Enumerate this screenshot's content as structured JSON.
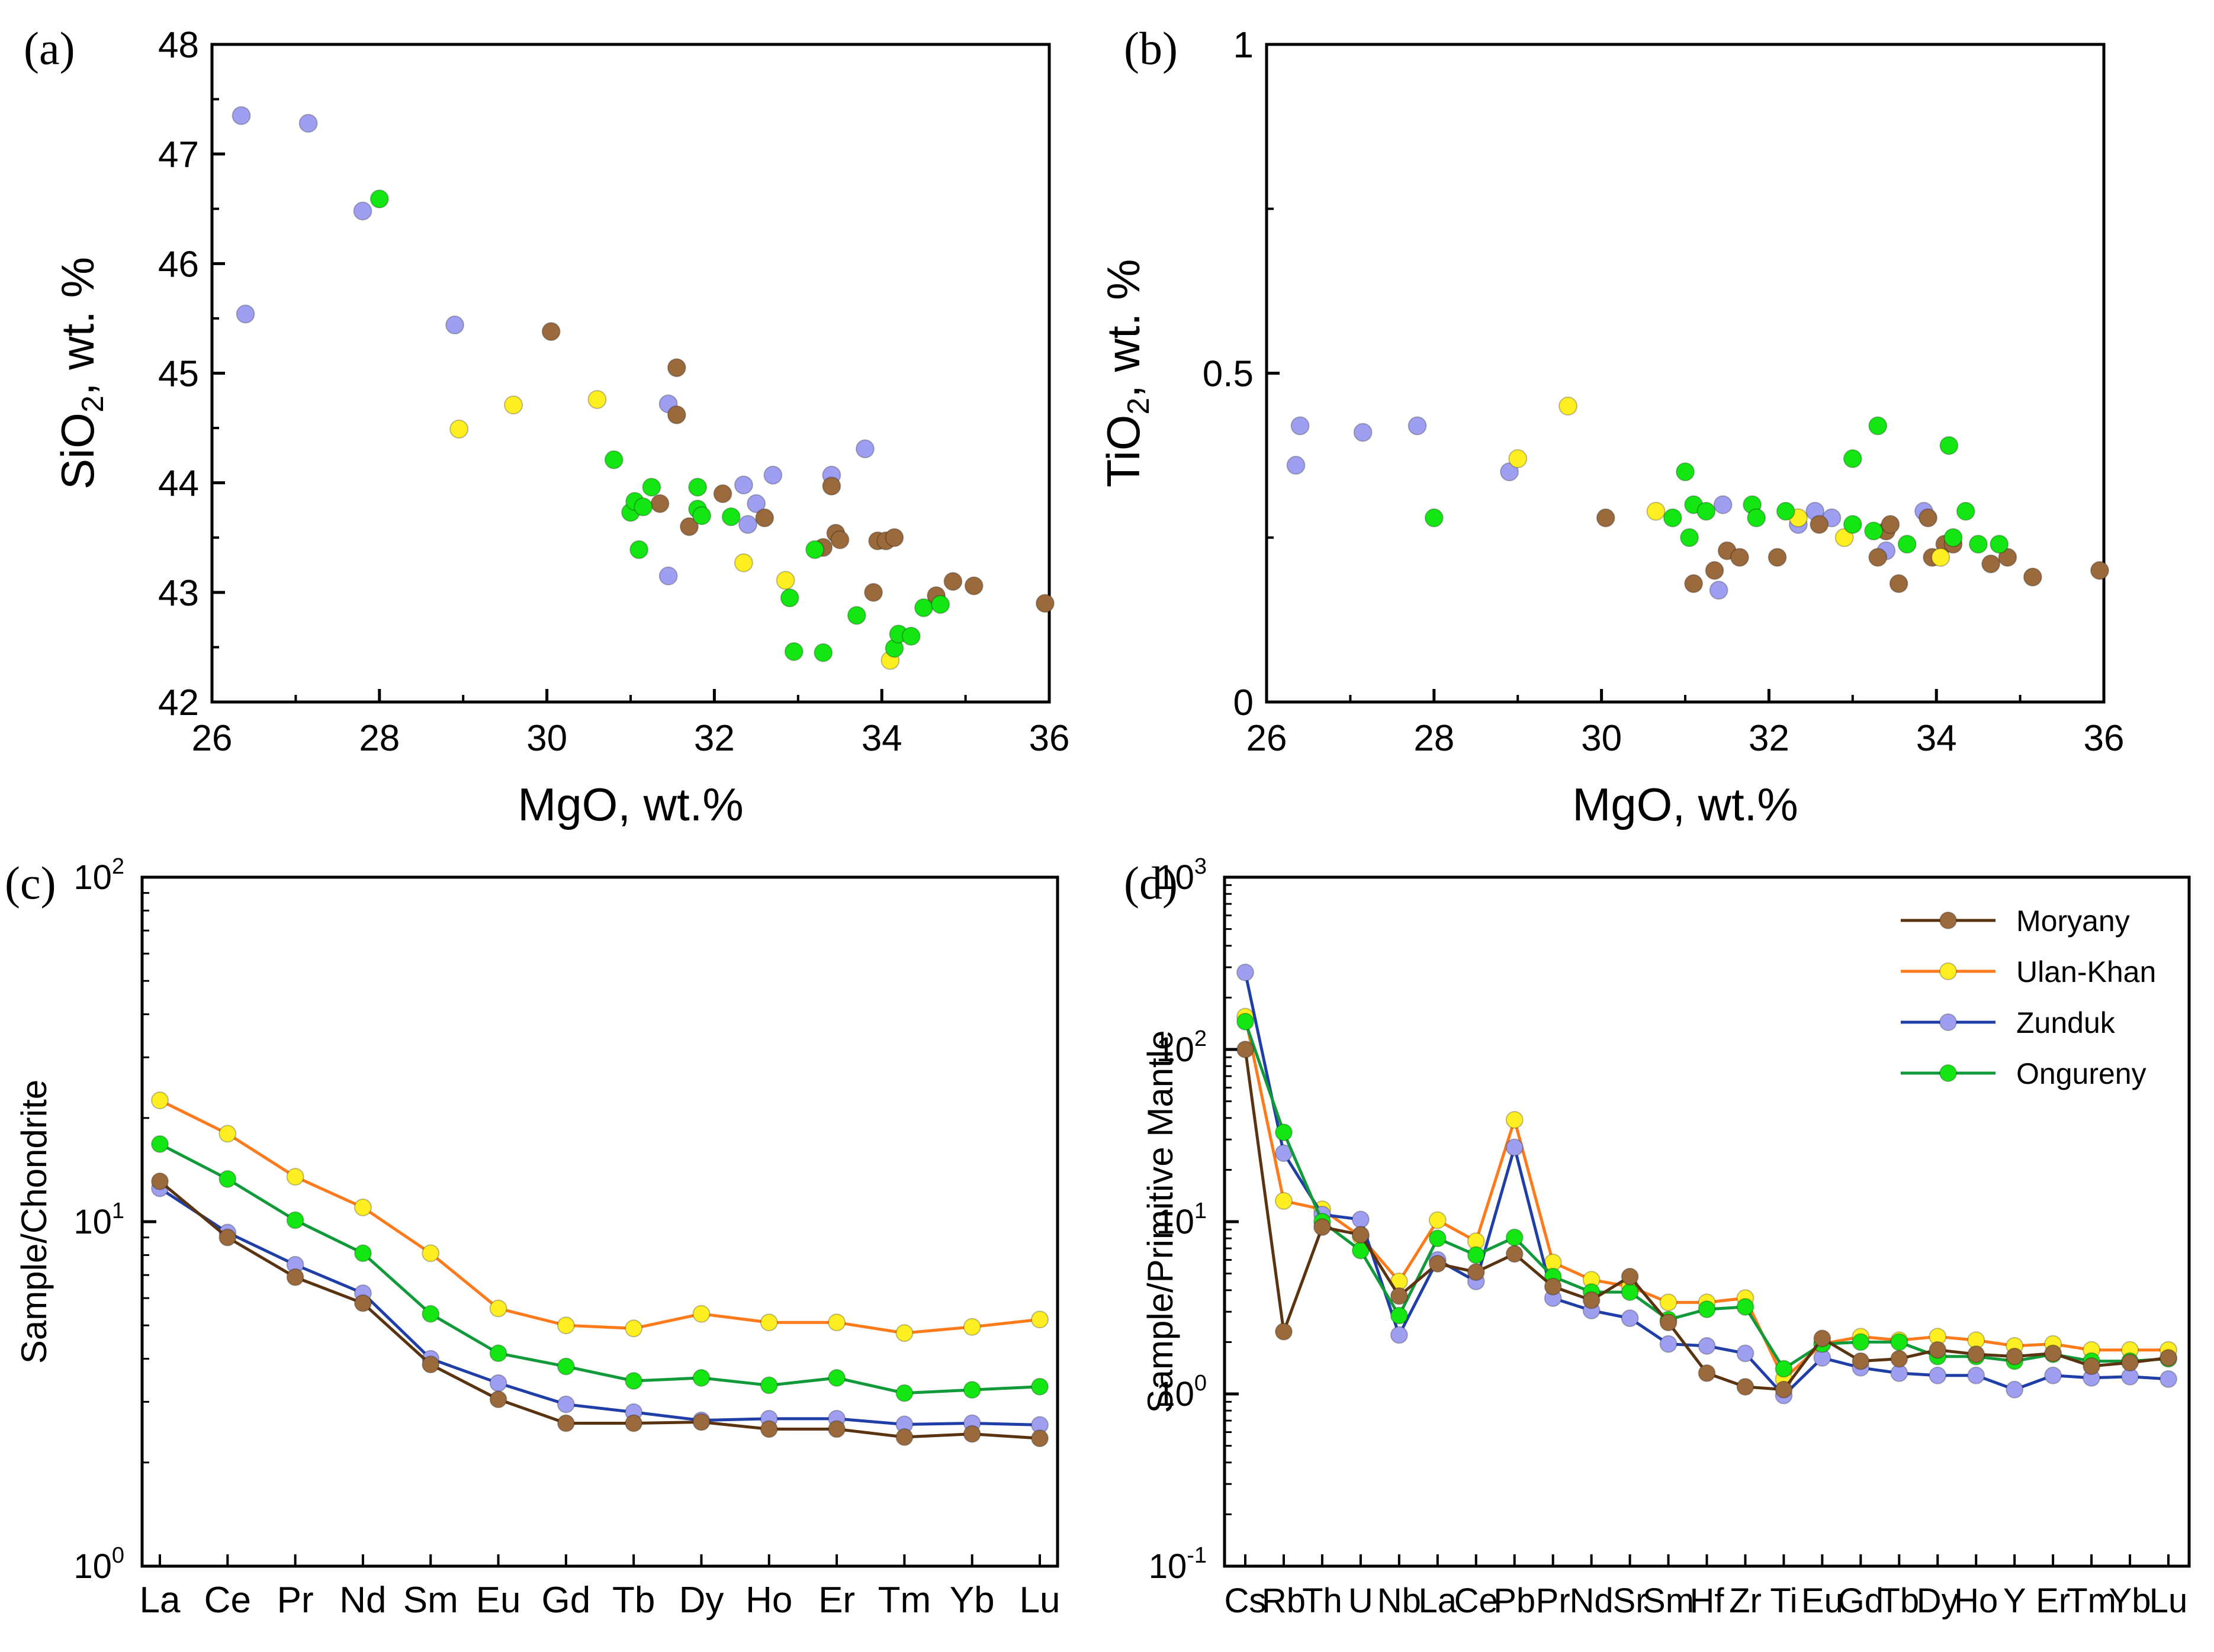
{
  "colors": {
    "Moryany": {
      "fill": "#9b6a3c",
      "line": "#5a3310"
    },
    "Ulan-Khan": {
      "fill": "#ffee22",
      "line": "#ff7a1a"
    },
    "Zunduk": {
      "fill": "#9f9ff2",
      "line": "#1f3ea8"
    },
    "Ongureny": {
      "fill": "#14e614",
      "line": "#119a3a"
    }
  },
  "chart_data": [
    {
      "id": "a",
      "panel_label": "(a)",
      "type": "scatter",
      "xlabel": "MgO, wt.%",
      "ylabel": {
        "main": "SiO",
        "sub": "2",
        "rest": ", wt. %"
      },
      "xlim": [
        26,
        36
      ],
      "ylim": [
        42,
        48
      ],
      "xticks": [
        "26",
        "28",
        "30",
        "32",
        "34",
        "36"
      ],
      "yticks": [
        "42",
        "43",
        "44",
        "45",
        "46",
        "47",
        "48"
      ],
      "series": [
        {
          "name": "Zunduk",
          "points": [
            [
              26.35,
              47.35
            ],
            [
              27.15,
              47.28
            ],
            [
              27.8,
              46.48
            ],
            [
              26.4,
              45.54
            ],
            [
              28.9,
              45.44
            ],
            [
              31.45,
              44.72
            ],
            [
              32.7,
              44.07
            ],
            [
              33.4,
              44.07
            ],
            [
              33.8,
              44.31
            ],
            [
              32.35,
              43.98
            ],
            [
              32.5,
              43.81
            ],
            [
              32.4,
              43.62
            ],
            [
              31.45,
              43.15
            ]
          ]
        },
        {
          "name": "Moryany",
          "points": [
            [
              30.05,
              45.38
            ],
            [
              31.55,
              45.05
            ],
            [
              31.55,
              44.62
            ],
            [
              31.35,
              43.81
            ],
            [
              31.7,
              43.6
            ],
            [
              32.1,
              43.9
            ],
            [
              32.6,
              43.68
            ],
            [
              33.4,
              43.97
            ],
            [
              33.3,
              43.41
            ],
            [
              33.45,
              43.54
            ],
            [
              33.5,
              43.48
            ],
            [
              33.9,
              43.0
            ],
            [
              33.95,
              43.47
            ],
            [
              34.05,
              43.47
            ],
            [
              34.15,
              43.5
            ],
            [
              34.65,
              42.97
            ],
            [
              34.85,
              43.1
            ],
            [
              35.1,
              43.06
            ],
            [
              35.95,
              42.9
            ]
          ]
        },
        {
          "name": "Ulan-Khan",
          "points": [
            [
              28.95,
              44.49
            ],
            [
              29.6,
              44.71
            ],
            [
              30.6,
              44.76
            ],
            [
              32.35,
              43.27
            ],
            [
              32.85,
              43.11
            ],
            [
              34.1,
              42.38
            ]
          ]
        },
        {
          "name": "Ongureny",
          "points": [
            [
              28.0,
              46.59
            ],
            [
              30.8,
              44.21
            ],
            [
              31.0,
              43.73
            ],
            [
              31.05,
              43.83
            ],
            [
              31.15,
              43.78
            ],
            [
              31.1,
              43.39
            ],
            [
              31.25,
              43.96
            ],
            [
              31.8,
              43.96
            ],
            [
              31.8,
              43.76
            ],
            [
              31.85,
              43.7
            ],
            [
              32.2,
              43.69
            ],
            [
              32.9,
              42.95
            ],
            [
              32.95,
              42.46
            ],
            [
              33.2,
              43.39
            ],
            [
              33.3,
              42.45
            ],
            [
              33.7,
              42.79
            ],
            [
              34.15,
              42.49
            ],
            [
              34.2,
              42.62
            ],
            [
              34.35,
              42.6
            ],
            [
              34.5,
              42.86
            ],
            [
              34.7,
              42.89
            ]
          ]
        }
      ]
    },
    {
      "id": "b",
      "panel_label": "(b)",
      "type": "scatter",
      "xlabel": "MgO, wt.%",
      "ylabel": {
        "main": "TiO",
        "sub": "2",
        "rest": ", wt. %"
      },
      "xlim": [
        26,
        36
      ],
      "ylim": [
        0,
        1
      ],
      "xticks": [
        "26",
        "28",
        "30",
        "32",
        "34",
        "36"
      ],
      "yticks": [
        "0",
        "0.5",
        "1"
      ],
      "series": [
        {
          "name": "Zunduk",
          "points": [
            [
              26.4,
              0.42
            ],
            [
              27.15,
              0.41
            ],
            [
              27.8,
              0.42
            ],
            [
              26.35,
              0.36
            ],
            [
              28.9,
              0.35
            ],
            [
              31.45,
              0.3
            ],
            [
              32.35,
              0.27
            ],
            [
              32.55,
              0.29
            ],
            [
              32.75,
              0.28
            ],
            [
              33.4,
              0.23
            ],
            [
              33.85,
              0.29
            ],
            [
              31.4,
              0.17
            ]
          ]
        },
        {
          "name": "Moryany",
          "points": [
            [
              30.05,
              0.28
            ],
            [
              31.1,
              0.18
            ],
            [
              31.35,
              0.2
            ],
            [
              31.5,
              0.23
            ],
            [
              31.65,
              0.22
            ],
            [
              32.1,
              0.22
            ],
            [
              32.6,
              0.27
            ],
            [
              33.3,
              0.22
            ],
            [
              33.4,
              0.26
            ],
            [
              33.45,
              0.27
            ],
            [
              33.55,
              0.18
            ],
            [
              33.9,
              0.28
            ],
            [
              33.95,
              0.22
            ],
            [
              34.1,
              0.24
            ],
            [
              34.2,
              0.24
            ],
            [
              34.65,
              0.21
            ],
            [
              34.85,
              0.22
            ],
            [
              35.15,
              0.19
            ],
            [
              35.95,
              0.2
            ]
          ]
        },
        {
          "name": "Ulan-Khan",
          "points": [
            [
              29.0,
              0.37
            ],
            [
              29.6,
              0.45
            ],
            [
              30.65,
              0.29
            ],
            [
              32.35,
              0.28
            ],
            [
              32.9,
              0.25
            ],
            [
              34.05,
              0.22
            ]
          ]
        },
        {
          "name": "Ongureny",
          "points": [
            [
              28.0,
              0.28
            ],
            [
              31.0,
              0.35
            ],
            [
              31.1,
              0.3
            ],
            [
              31.05,
              0.25
            ],
            [
              30.85,
              0.28
            ],
            [
              31.25,
              0.29
            ],
            [
              31.8,
              0.3
            ],
            [
              31.85,
              0.28
            ],
            [
              32.2,
              0.29
            ],
            [
              33.0,
              0.27
            ],
            [
              33.0,
              0.37
            ],
            [
              33.3,
              0.42
            ],
            [
              33.25,
              0.26
            ],
            [
              33.65,
              0.24
            ],
            [
              34.15,
              0.39
            ],
            [
              34.2,
              0.25
            ],
            [
              34.35,
              0.29
            ],
            [
              34.5,
              0.24
            ],
            [
              34.75,
              0.24
            ]
          ]
        }
      ]
    },
    {
      "id": "c",
      "panel_label": "(c)",
      "type": "line",
      "yscale": "log",
      "ylabel": "Sample/Chondrite",
      "xlabel": "",
      "ylim": [
        1,
        100
      ],
      "yticks": [
        {
          "base": "10",
          "exp": "0"
        },
        {
          "base": "10",
          "exp": "1"
        },
        {
          "base": "10",
          "exp": "2"
        }
      ],
      "categories": [
        "La",
        "Ce",
        "Pr",
        "Nd",
        "Sm",
        "Eu",
        "Gd",
        "Tb",
        "Dy",
        "Ho",
        "Er",
        "Tm",
        "Yb",
        "Lu"
      ],
      "series": [
        {
          "name": "Ulan-Khan",
          "values": [
            22.5,
            18.0,
            13.5,
            11.0,
            8.1,
            5.6,
            5.0,
            4.9,
            5.4,
            5.1,
            5.1,
            4.75,
            4.95,
            5.2
          ]
        },
        {
          "name": "Ongureny",
          "values": [
            16.8,
            13.3,
            10.1,
            8.1,
            5.4,
            4.15,
            3.8,
            3.45,
            3.52,
            3.35,
            3.52,
            3.18,
            3.25,
            3.32
          ]
        },
        {
          "name": "Zunduk",
          "values": [
            12.5,
            9.3,
            7.5,
            6.2,
            4.0,
            3.4,
            2.95,
            2.8,
            2.65,
            2.68,
            2.68,
            2.58,
            2.6,
            2.57
          ]
        },
        {
          "name": "Moryany",
          "values": [
            13.1,
            9.0,
            6.9,
            5.8,
            3.85,
            3.05,
            2.6,
            2.6,
            2.62,
            2.5,
            2.5,
            2.37,
            2.42,
            2.35
          ]
        }
      ]
    },
    {
      "id": "d",
      "panel_label": "(d)",
      "type": "line",
      "yscale": "log",
      "ylabel": "Sample/Primitive Mantle",
      "xlabel": "",
      "ylim": [
        0.1,
        1000
      ],
      "yticks": [
        {
          "base": "10",
          "exp": "-1"
        },
        {
          "base": "10",
          "exp": "0"
        },
        {
          "base": "10",
          "exp": "1"
        },
        {
          "base": "10",
          "exp": "2"
        },
        {
          "base": "10",
          "exp": "3"
        }
      ],
      "yticks_display": [
        "10-1",
        "100",
        "101",
        "102",
        "103"
      ],
      "categories": [
        "Cs",
        "Rb",
        "Th",
        "U",
        "Nb",
        "La",
        "Ce",
        "Pb",
        "Pr",
        "Nd",
        "Sr",
        "Sm",
        "Hf",
        "Zr",
        "Ti",
        "Eu",
        "Gd",
        "Tb",
        "Dy",
        "Ho",
        "Y",
        "Er",
        "Tm",
        "Yb",
        "Lu"
      ],
      "legend": {
        "position": "top-right",
        "entries": [
          "Moryany",
          "Ulan-Khan",
          "Zunduk",
          "Ongureny"
        ]
      },
      "series": [
        {
          "name": "Ulan-Khan",
          "values": [
            155,
            13.2,
            11.8,
            8.2,
            4.5,
            10.2,
            7.7,
            39,
            5.8,
            4.6,
            4.2,
            3.4,
            3.4,
            3.6,
            1.22,
            1.95,
            2.15,
            2.05,
            2.15,
            2.05,
            1.9,
            1.95,
            1.8,
            1.8,
            1.8
          ]
        },
        {
          "name": "Zunduk",
          "values": [
            280,
            25,
            11.0,
            10.3,
            2.2,
            6.0,
            4.5,
            27,
            3.6,
            3.05,
            2.75,
            1.95,
            1.9,
            1.72,
            0.98,
            1.62,
            1.42,
            1.32,
            1.28,
            1.28,
            1.06,
            1.28,
            1.24,
            1.26,
            1.22
          ]
        },
        {
          "name": "Ongureny",
          "values": [
            145,
            33,
            10.0,
            6.8,
            2.85,
            8.0,
            6.4,
            8.1,
            4.8,
            3.9,
            3.9,
            2.7,
            3.1,
            3.2,
            1.4,
            1.95,
            2.0,
            2.0,
            1.65,
            1.65,
            1.55,
            1.7,
            1.55,
            1.55,
            1.6
          ]
        },
        {
          "name": "Moryany",
          "values": [
            100,
            2.3,
            9.3,
            8.4,
            3.7,
            5.7,
            5.1,
            6.5,
            4.2,
            3.5,
            4.8,
            2.6,
            1.32,
            1.1,
            1.06,
            2.1,
            1.55,
            1.6,
            1.8,
            1.7,
            1.65,
            1.72,
            1.45,
            1.52,
            1.62
          ]
        }
      ]
    }
  ]
}
